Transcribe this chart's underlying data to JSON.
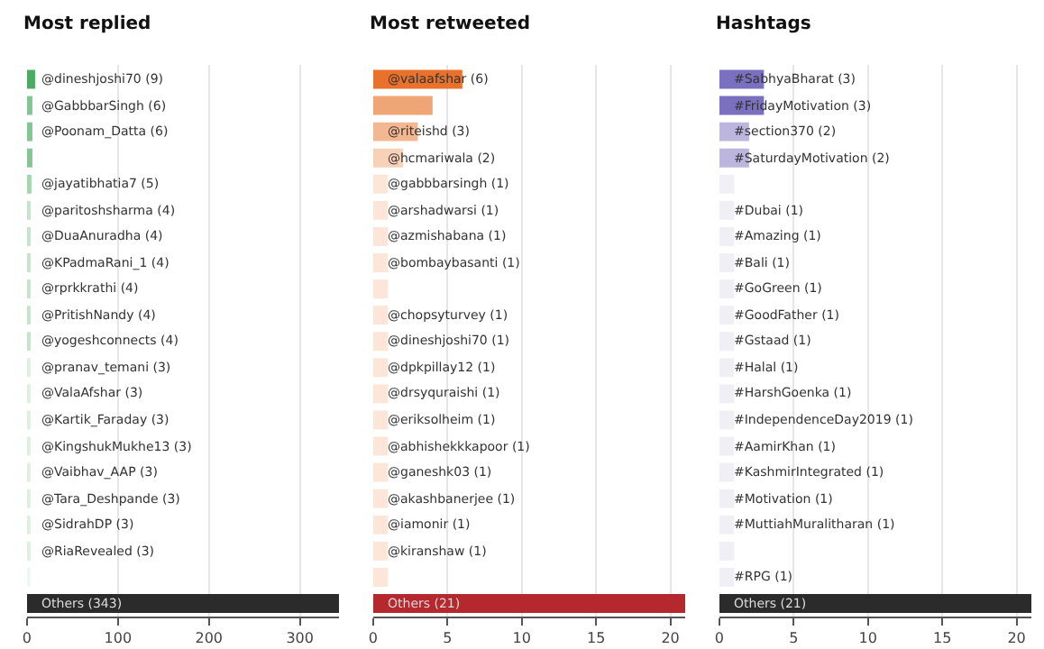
{
  "chart_data": [
    {
      "type": "bar",
      "orientation": "horizontal",
      "title": "Most replied",
      "categories": [
        "@dineshjoshi70",
        "@GabbbarSingh",
        "@Poonam_Datta",
        null,
        "@jayatibhatia7",
        "@paritoshsharma",
        "@DuaAnuradha",
        "@KPadmaRani_1",
        "@rprkkrathi",
        "@PritishNandy",
        "@yogeshconnects",
        "@pranav_temani",
        "@ValaAfshar",
        "@Kartik_Faraday",
        "@KingshukMukhe13",
        "@Vaibhav_AAP",
        "@Tara_Deshpande",
        "@SidrahDP",
        "@RiaRevealed",
        null,
        "Others"
      ],
      "values": [
        9,
        6,
        6,
        6,
        5,
        4,
        4,
        4,
        4,
        4,
        4,
        3,
        3,
        3,
        3,
        3,
        3,
        3,
        3,
        2,
        343
      ],
      "value_labels": [
        "(9)",
        "(6)",
        "(6)",
        null,
        "(5)",
        "(4)",
        "(4)",
        "(4)",
        "(4)",
        "(4)",
        "(4)",
        "(3)",
        "(3)",
        "(3)",
        "(3)",
        "(3)",
        "(3)",
        "(3)",
        "(3)",
        null,
        "(343)"
      ],
      "colors": [
        "#4daa62",
        "#85c493",
        "#85c493",
        "#85c493",
        "#a7d5b0",
        "#c5e4cb",
        "#c5e4cb",
        "#c5e4cb",
        "#c5e4cb",
        "#c5e4cb",
        "#c5e4cb",
        "#dff0e2",
        "#dff0e2",
        "#dff0e2",
        "#dff0e2",
        "#dff0e2",
        "#dff0e2",
        "#dff0e2",
        "#dff0e2",
        "#eef7f0",
        "#2b2b2b"
      ],
      "xlim": [
        0,
        343
      ],
      "xticks": [
        0,
        100,
        200,
        300
      ],
      "grid": "x",
      "tick_labels": "x"
    },
    {
      "type": "bar",
      "orientation": "horizontal",
      "title": "Most retweeted",
      "categories": [
        "@valaafshar",
        null,
        "@riteishd",
        "@hcmariwala",
        "@gabbbarsingh",
        "@arshadwarsi",
        "@azmishabana",
        "@bombaybasanti",
        null,
        "@chopsyturvey",
        "@dineshjoshi70",
        "@dpkpillay12",
        "@drsyquraishi",
        "@eriksolheim",
        "@abhishekkkapoor",
        "@ganeshk03",
        "@akashbanerjee",
        "@iamonir",
        "@kiranshaw",
        null,
        "Others"
      ],
      "values": [
        6,
        4,
        3,
        2,
        1,
        1,
        1,
        1,
        1,
        1,
        1,
        1,
        1,
        1,
        1,
        1,
        1,
        1,
        1,
        1,
        21
      ],
      "value_labels": [
        "(6)",
        null,
        "(3)",
        "(2)",
        "(1)",
        "(1)",
        "(1)",
        "(1)",
        null,
        "(1)",
        "(1)",
        "(1)",
        "(1)",
        "(1)",
        "(1)",
        "(1)",
        "(1)",
        "(1)",
        "(1)",
        null,
        "(21)"
      ],
      "colors": [
        "#e8712c",
        "#f0a577",
        "#f3b892",
        "#f7d2b8",
        "#fbe6d8",
        "#fbe6d8",
        "#fbe6d8",
        "#fbe6d8",
        "#fbe6d8",
        "#fbe6d8",
        "#fbe6d8",
        "#fbe6d8",
        "#fbe6d8",
        "#fbe6d8",
        "#fbe6d8",
        "#fbe6d8",
        "#fbe6d8",
        "#fbe6d8",
        "#fbe6d8",
        "#fbe6d8",
        "#b5282d"
      ],
      "xlim": [
        0,
        21
      ],
      "xticks": [
        0,
        5,
        10,
        15,
        20
      ],
      "grid": "x",
      "tick_labels": "x"
    },
    {
      "type": "bar",
      "orientation": "horizontal",
      "title": "Hashtags",
      "categories": [
        "#SabhyaBharat",
        "#FridayMotivation",
        "#section370",
        "#SaturdayMotivation",
        null,
        "#Dubai",
        "#Amazing",
        "#Bali",
        "#GoGreen",
        "#GoodFather",
        "#Gstaad",
        "#Halal",
        "#HarshGoenka",
        "#IndependenceDay2019",
        "#AamirKhan",
        "#KashmirIntegrated",
        "#Motivation",
        "#MuttiahMuralitharan",
        null,
        "#RPG",
        "Others"
      ],
      "values": [
        3,
        3,
        2,
        2,
        1,
        1,
        1,
        1,
        1,
        1,
        1,
        1,
        1,
        1,
        1,
        1,
        1,
        1,
        1,
        1,
        21
      ],
      "value_labels": [
        "(3)",
        "(3)",
        "(2)",
        "(2)",
        null,
        "(1)",
        "(1)",
        "(1)",
        "(1)",
        "(1)",
        "(1)",
        "(1)",
        "(1)",
        "(1)",
        "(1)",
        "(1)",
        "(1)",
        "(1)",
        null,
        "(1)",
        "(21)"
      ],
      "colors": [
        "#7b70c0",
        "#7b70c0",
        "#bcb5dd",
        "#bcb5dd",
        "#f0eff6",
        "#f0eff6",
        "#f0eff6",
        "#f0eff6",
        "#f0eff6",
        "#f0eff6",
        "#f0eff6",
        "#f0eff6",
        "#f0eff6",
        "#f0eff6",
        "#f0eff6",
        "#f0eff6",
        "#f0eff6",
        "#f0eff6",
        "#f0eff6",
        "#f0eff6",
        "#2b2b2b"
      ],
      "xlim": [
        0,
        21
      ],
      "xticks": [
        0,
        5,
        10,
        15,
        20
      ],
      "grid": "x",
      "tick_labels": "x"
    }
  ]
}
